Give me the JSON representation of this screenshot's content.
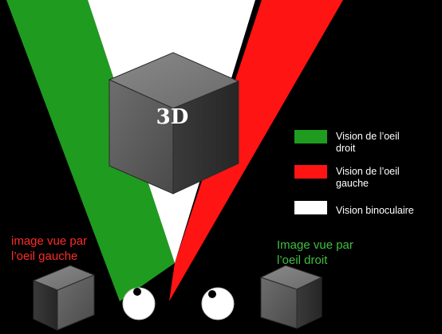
{
  "colors": {
    "background": "#000000",
    "green": "#1f9b1f",
    "red": "#ff1414",
    "white": "#ffffff",
    "legend_text": "#ffffff",
    "left_caption": "#ff2a2a",
    "right_caption": "#3fbf3f"
  },
  "cube": {
    "label": "3D"
  },
  "legend": {
    "items": [
      {
        "key": "right-eye",
        "color": "#1f9b1f",
        "lines": [
          "Vision de l’oeil",
          "droit"
        ]
      },
      {
        "key": "left-eye",
        "color": "#ff1414",
        "lines": [
          "Vision de l’oeil",
          "gauche"
        ]
      },
      {
        "key": "binocular",
        "color": "#ffffff",
        "lines": [
          "Vision binoculaire"
        ]
      }
    ]
  },
  "captions": {
    "left": {
      "lines": [
        "image vue par",
        "l’oeil gauche"
      ]
    },
    "right": {
      "lines": [
        "Image vue par",
        "l’oeil droit"
      ]
    }
  },
  "icons": {
    "eyes": [
      "eye-icon",
      "eye-icon"
    ],
    "cubes": [
      "cube-icon",
      "cube-icon",
      "cube-icon"
    ]
  }
}
